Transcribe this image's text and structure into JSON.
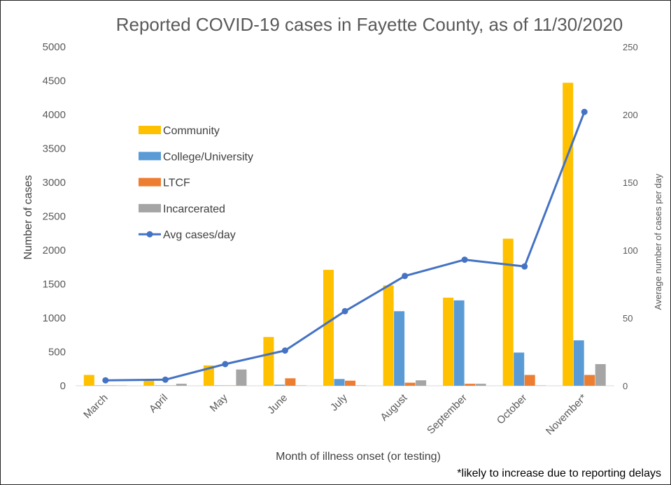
{
  "chart_data": {
    "type": "bar",
    "title": "Reported COVID-19 cases in Fayette County, as of 11/30/2020",
    "xlabel": "Month of illness onset (or testing)",
    "ylabel": "Number of cases",
    "y2label": "Average number of cases per day",
    "ylim": [
      0,
      5000
    ],
    "y2lim": [
      0,
      250
    ],
    "yticks": [
      "0",
      "500",
      "1000",
      "1500",
      "2000",
      "2500",
      "3000",
      "3500",
      "4000",
      "4500",
      "5000"
    ],
    "y2ticks": [
      "0",
      "50",
      "100",
      "150",
      "200",
      "250"
    ],
    "categories": [
      "March",
      "April",
      "May",
      "June",
      "July",
      "August",
      "September",
      "October",
      "November*"
    ],
    "series": [
      {
        "name": "Community",
        "type": "bar",
        "color": "#FFC000",
        "values": [
          160,
          90,
          300,
          720,
          1710,
          1480,
          1300,
          2170,
          4470
        ]
      },
      {
        "name": "College/University",
        "type": "bar",
        "color": "#5B9BD5",
        "values": [
          5,
          5,
          5,
          15,
          100,
          1100,
          1260,
          490,
          670
        ]
      },
      {
        "name": "LTCF",
        "type": "bar",
        "color": "#ED7D31",
        "values": [
          5,
          5,
          5,
          110,
          75,
          45,
          30,
          160,
          160
        ]
      },
      {
        "name": "Incarcerated",
        "type": "bar",
        "color": "#A5A5A5",
        "values": [
          5,
          30,
          240,
          5,
          5,
          80,
          30,
          5,
          320
        ]
      },
      {
        "name": "Avg cases/day",
        "type": "line",
        "axis": "right",
        "color": "#4472C4",
        "values": [
          4,
          4.5,
          16,
          26,
          55,
          81,
          93,
          88,
          202
        ]
      }
    ],
    "legend_position": "upper-left inside plot",
    "grid": false,
    "footnote": "*likely to increase due to reporting delays"
  }
}
